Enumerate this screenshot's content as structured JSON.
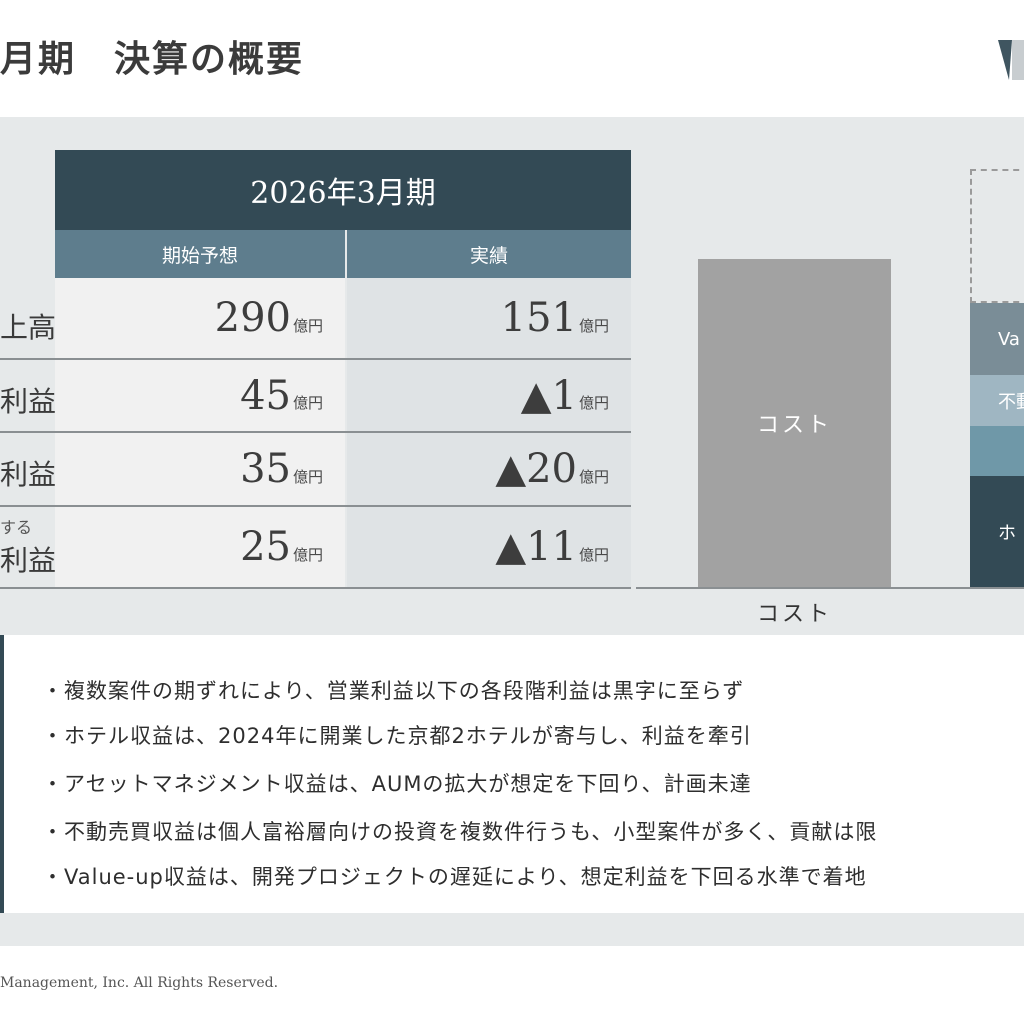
{
  "header": {
    "title": "月期　決算の概要"
  },
  "table": {
    "period_header": "2026年3月期",
    "col_forecast": "期始予想",
    "col_actual": "実績",
    "rows": [
      {
        "label": "上高",
        "forecast": "290",
        "forecast_unit": "億円",
        "actual": "151",
        "actual_unit": "億円"
      },
      {
        "label": "利益",
        "forecast": "45",
        "forecast_unit": "億円",
        "actual": "▲1",
        "actual_unit": "億円"
      },
      {
        "label": "利益",
        "forecast": "35",
        "forecast_unit": "億円",
        "actual": "▲20",
        "actual_unit": "億円"
      },
      {
        "label_small": "する",
        "label": "利益",
        "forecast": "25",
        "forecast_unit": "億円",
        "actual": "▲11",
        "actual_unit": "億円"
      }
    ]
  },
  "chart": {
    "cost_bar_label": "コスト",
    "cost_axis_label": "コスト",
    "segments": [
      {
        "label": "Va",
        "color": "#7a8d97"
      },
      {
        "label": "不動",
        "color": "#9fb6c2"
      },
      {
        "label": "",
        "color": "#6f98a8"
      },
      {
        "label": "ホ",
        "color": "#334a55"
      }
    ]
  },
  "notes": [
    "・複数案件の期ずれにより、営業利益以下の各段階利益は黒字に至らず",
    "・ホテル収益は、2024年に開業した京都2ホテルが寄与し、利益を牽引",
    "・アセットマネジメント収益は、AUMの拡大が想定を下回り、計画未達",
    "・不動売買収益は個人富裕層向けの投資を複数件行うも、小型案件が多く、貢献は限",
    "・Value-up収益は、開発プロジェクトの遅延により、想定利益を下回る水準で着地"
  ],
  "footer": {
    "copyright": "Management, Inc. All Rights Reserved."
  },
  "colors": {
    "dark": "#334a55",
    "mid": "#5e7d8d",
    "panel": "#e6e9ea"
  }
}
